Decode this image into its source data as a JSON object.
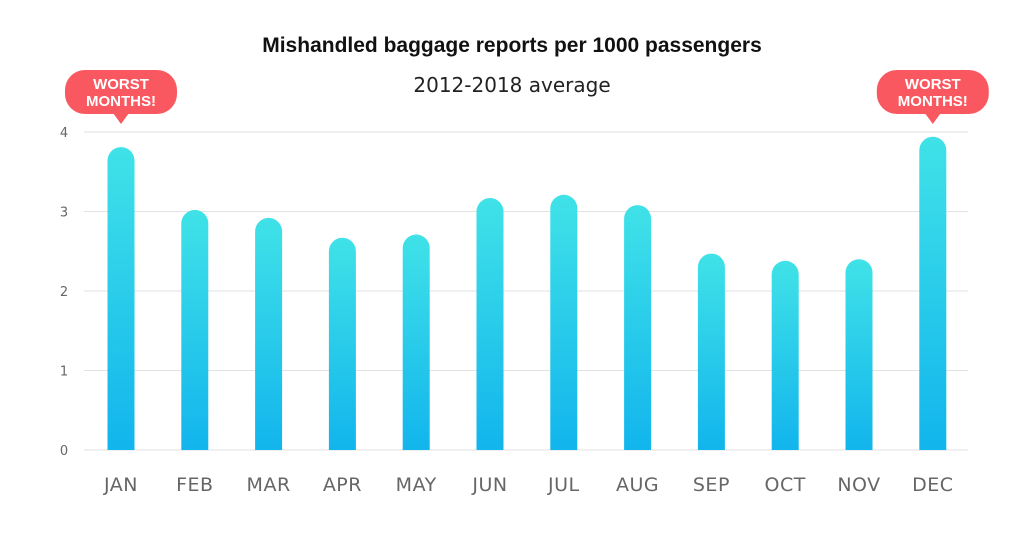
{
  "chart_data": {
    "type": "bar",
    "title": "Mishandled baggage reports per 1000 passengers",
    "subtitle": "2012-2018 average",
    "categories": [
      "JAN",
      "FEB",
      "MAR",
      "APR",
      "MAY",
      "JUN",
      "JUL",
      "AUG",
      "SEP",
      "OCT",
      "NOV",
      "DEC"
    ],
    "values": [
      3.81,
      3.02,
      2.92,
      2.67,
      2.71,
      3.17,
      3.21,
      3.08,
      2.47,
      2.38,
      2.4,
      3.94
    ],
    "ylim": [
      0,
      4
    ],
    "yticks": [
      0,
      1,
      2,
      3,
      4
    ],
    "grid": true,
    "annotations": [
      {
        "text_lines": [
          "WORST",
          "MONTHS!"
        ],
        "category": "JAN"
      },
      {
        "text_lines": [
          "WORST",
          "MONTHS!"
        ],
        "category": "DEC"
      }
    ],
    "colors": {
      "bar_top": "#40E2E8",
      "bar_bottom": "#12B5EC",
      "annotation_fill": "#FA5860",
      "annotation_text": "#FFFFFF",
      "grid": "#E2E2E2",
      "axis_text": "#666666"
    }
  }
}
